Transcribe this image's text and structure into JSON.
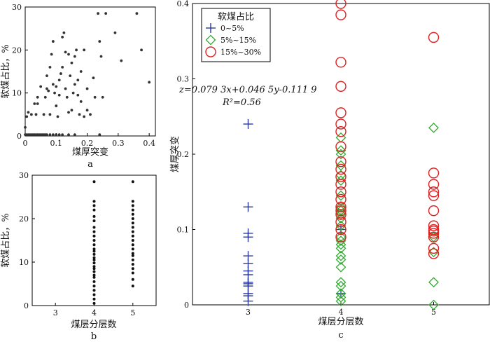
{
  "chart_data": [
    {
      "id": "a",
      "type": "scatter",
      "panel_label": "a",
      "xlabel": "煤厚突变",
      "ylabel": "软煤占比，%",
      "xlim": [
        0,
        0.42
      ],
      "ylim": [
        0,
        30
      ],
      "xticks": [
        "0",
        "0.1",
        "0.2",
        "0.3",
        "0.4"
      ],
      "yticks": [
        "0",
        "10",
        "20",
        "30"
      ],
      "color": "#333333",
      "points": [
        [
          0.0,
          0.3
        ],
        [
          0.005,
          0.3
        ],
        [
          0.01,
          0.3
        ],
        [
          0.015,
          0.3
        ],
        [
          0.02,
          0.3
        ],
        [
          0.025,
          0.3
        ],
        [
          0.03,
          0.3
        ],
        [
          0.035,
          0.3
        ],
        [
          0.04,
          0.3
        ],
        [
          0.045,
          0.3
        ],
        [
          0.05,
          0.3
        ],
        [
          0.055,
          0.3
        ],
        [
          0.06,
          0.3
        ],
        [
          0.065,
          0.3
        ],
        [
          0.07,
          0.3
        ],
        [
          0.08,
          0.3
        ],
        [
          0.09,
          0.3
        ],
        [
          0.1,
          0.3
        ],
        [
          0.11,
          0.3
        ],
        [
          0.12,
          0.3
        ],
        [
          0.14,
          0.3
        ],
        [
          0.16,
          0.3
        ],
        [
          0.24,
          0.3
        ],
        [
          0.0,
          2.0
        ],
        [
          0.005,
          4.5
        ],
        [
          0.01,
          5.5
        ],
        [
          0.02,
          5.0
        ],
        [
          0.03,
          7.5
        ],
        [
          0.035,
          5.0
        ],
        [
          0.04,
          9.0
        ],
        [
          0.04,
          7.5
        ],
        [
          0.05,
          11.5
        ],
        [
          0.06,
          5.0
        ],
        [
          0.065,
          9.0
        ],
        [
          0.07,
          11.0
        ],
        [
          0.07,
          14.0
        ],
        [
          0.075,
          10.5
        ],
        [
          0.08,
          16.0
        ],
        [
          0.08,
          5.0
        ],
        [
          0.085,
          19.0
        ],
        [
          0.09,
          12.0
        ],
        [
          0.09,
          22.0
        ],
        [
          0.095,
          10.0
        ],
        [
          0.1,
          11.5
        ],
        [
          0.1,
          7.0
        ],
        [
          0.105,
          4.5
        ],
        [
          0.11,
          9.5
        ],
        [
          0.11,
          13.0
        ],
        [
          0.115,
          14.5
        ],
        [
          0.12,
          16.0
        ],
        [
          0.12,
          23.0
        ],
        [
          0.125,
          24.0
        ],
        [
          0.13,
          19.5
        ],
        [
          0.13,
          11.0
        ],
        [
          0.135,
          9.0
        ],
        [
          0.14,
          19.0
        ],
        [
          0.14,
          5.5
        ],
        [
          0.145,
          14.0
        ],
        [
          0.15,
          17.0
        ],
        [
          0.15,
          6.0
        ],
        [
          0.155,
          10.0
        ],
        [
          0.16,
          18.5
        ],
        [
          0.16,
          12.0
        ],
        [
          0.165,
          20.0
        ],
        [
          0.17,
          13.0
        ],
        [
          0.17,
          9.5
        ],
        [
          0.175,
          5.0
        ],
        [
          0.18,
          15.0
        ],
        [
          0.18,
          8.0
        ],
        [
          0.19,
          20.0
        ],
        [
          0.19,
          4.5
        ],
        [
          0.2,
          11.0
        ],
        [
          0.2,
          6.0
        ],
        [
          0.21,
          5.0
        ],
        [
          0.22,
          13.5
        ],
        [
          0.225,
          9.0
        ],
        [
          0.235,
          28.5
        ],
        [
          0.24,
          22.0
        ],
        [
          0.245,
          18.5
        ],
        [
          0.25,
          9.0
        ],
        [
          0.26,
          28.5
        ],
        [
          0.29,
          24.0
        ],
        [
          0.31,
          17.5
        ],
        [
          0.36,
          28.5
        ],
        [
          0.375,
          20.0
        ],
        [
          0.4,
          12.5
        ]
      ]
    },
    {
      "id": "b",
      "type": "scatter",
      "panel_label": "b",
      "xlabel": "煤层分层数",
      "ylabel": "软煤占比，%",
      "xlim": [
        2.4,
        5.6
      ],
      "ylim": [
        0,
        30
      ],
      "xticks": [
        "3",
        "4",
        "5"
      ],
      "yticks": [
        "0",
        "10",
        "20",
        "30"
      ],
      "color": "#111111",
      "points": [
        [
          4,
          0.5
        ],
        [
          4,
          1.5
        ],
        [
          4,
          2.5
        ],
        [
          4,
          3.5
        ],
        [
          4,
          4.5
        ],
        [
          4,
          5.5
        ],
        [
          4,
          6.5
        ],
        [
          4,
          7.0
        ],
        [
          4,
          7.8
        ],
        [
          4,
          8.5
        ],
        [
          4,
          9.0
        ],
        [
          4,
          9.8
        ],
        [
          4,
          10.5
        ],
        [
          4,
          11.0
        ],
        [
          4,
          11.8
        ],
        [
          4,
          12.5
        ],
        [
          4,
          13.0
        ],
        [
          4,
          14.0
        ],
        [
          4,
          15.0
        ],
        [
          4,
          16.0
        ],
        [
          4,
          17.0
        ],
        [
          4,
          18.0
        ],
        [
          4,
          19.5
        ],
        [
          4,
          20.5
        ],
        [
          4,
          22.0
        ],
        [
          4,
          23.0
        ],
        [
          4,
          24.0
        ],
        [
          4,
          28.5
        ],
        [
          5,
          4.5
        ],
        [
          5,
          6.0
        ],
        [
          5,
          7.5
        ],
        [
          5,
          8.5
        ],
        [
          5,
          9.5
        ],
        [
          5,
          10.5
        ],
        [
          5,
          11.5
        ],
        [
          5,
          12.0
        ],
        [
          5,
          13.0
        ],
        [
          5,
          14.0
        ],
        [
          5,
          15.0
        ],
        [
          5,
          16.0
        ],
        [
          5,
          17.0
        ],
        [
          5,
          18.0
        ],
        [
          5,
          19.0
        ],
        [
          5,
          20.0
        ],
        [
          5,
          21.0
        ],
        [
          5,
          22.0
        ],
        [
          5,
          23.0
        ],
        [
          5,
          24.0
        ],
        [
          5,
          28.5
        ]
      ]
    },
    {
      "id": "c",
      "type": "scatter",
      "panel_label": "c",
      "xlabel": "煤层分层数",
      "ylabel": "煤厚突变",
      "xlim": [
        2.4,
        5.6
      ],
      "ylim": [
        0,
        0.4
      ],
      "xticks": [
        "3",
        "4",
        "5"
      ],
      "yticks": [
        "0",
        "0.1",
        "0.2",
        "0.3",
        "0.4"
      ],
      "legend_title": "软煤占比",
      "legend_position": "top-left",
      "annotation_line1": "z=0.079 3x+0.046 5y-0.111 9",
      "annotation_line2": "R²=0.56",
      "series": [
        {
          "name": "0~5%",
          "marker": "plus",
          "color": "#2b3a9a",
          "x": [
            3,
            3,
            3,
            3,
            3,
            3,
            3,
            3,
            3,
            3,
            3,
            3,
            3,
            3,
            4,
            4
          ],
          "y": [
            0.24,
            0.13,
            0.095,
            0.09,
            0.065,
            0.055,
            0.045,
            0.04,
            0.03,
            0.028,
            0.025,
            0.015,
            0.012,
            0.005,
            0.1,
            0.015
          ]
        },
        {
          "name": "5%~15%",
          "marker": "diamond",
          "color": "#33aa33",
          "x": [
            4,
            4,
            4,
            4,
            4,
            4,
            4,
            4,
            4,
            4,
            4,
            4,
            4,
            4,
            4,
            4,
            4,
            4,
            4,
            4,
            4,
            4,
            4,
            4,
            5,
            5,
            5,
            5,
            5
          ],
          "y": [
            0.222,
            0.205,
            0.2,
            0.185,
            0.172,
            0.165,
            0.145,
            0.13,
            0.125,
            0.12,
            0.115,
            0.105,
            0.09,
            0.085,
            0.08,
            0.075,
            0.065,
            0.06,
            0.05,
            0.03,
            0.025,
            0.015,
            0.01,
            0.005,
            0.235,
            0.09,
            0.07,
            0.03,
            0.0
          ]
        },
        {
          "name": "15%~30%",
          "marker": "circle",
          "color": "#dd2222",
          "x": [
            4,
            4,
            4,
            4,
            4,
            4,
            4,
            4,
            4,
            4,
            4,
            4,
            4,
            4,
            4,
            4,
            4,
            4,
            4,
            4,
            5,
            5,
            5,
            5,
            5,
            5,
            5,
            5,
            5,
            5,
            5,
            5,
            5
          ],
          "y": [
            0.4,
            0.385,
            0.322,
            0.29,
            0.255,
            0.24,
            0.23,
            0.21,
            0.19,
            0.18,
            0.17,
            0.16,
            0.15,
            0.14,
            0.13,
            0.125,
            0.12,
            0.11,
            0.1,
            0.09,
            0.355,
            0.175,
            0.16,
            0.15,
            0.145,
            0.125,
            0.105,
            0.1,
            0.098,
            0.095,
            0.09,
            0.075,
            0.068
          ]
        }
      ]
    }
  ]
}
